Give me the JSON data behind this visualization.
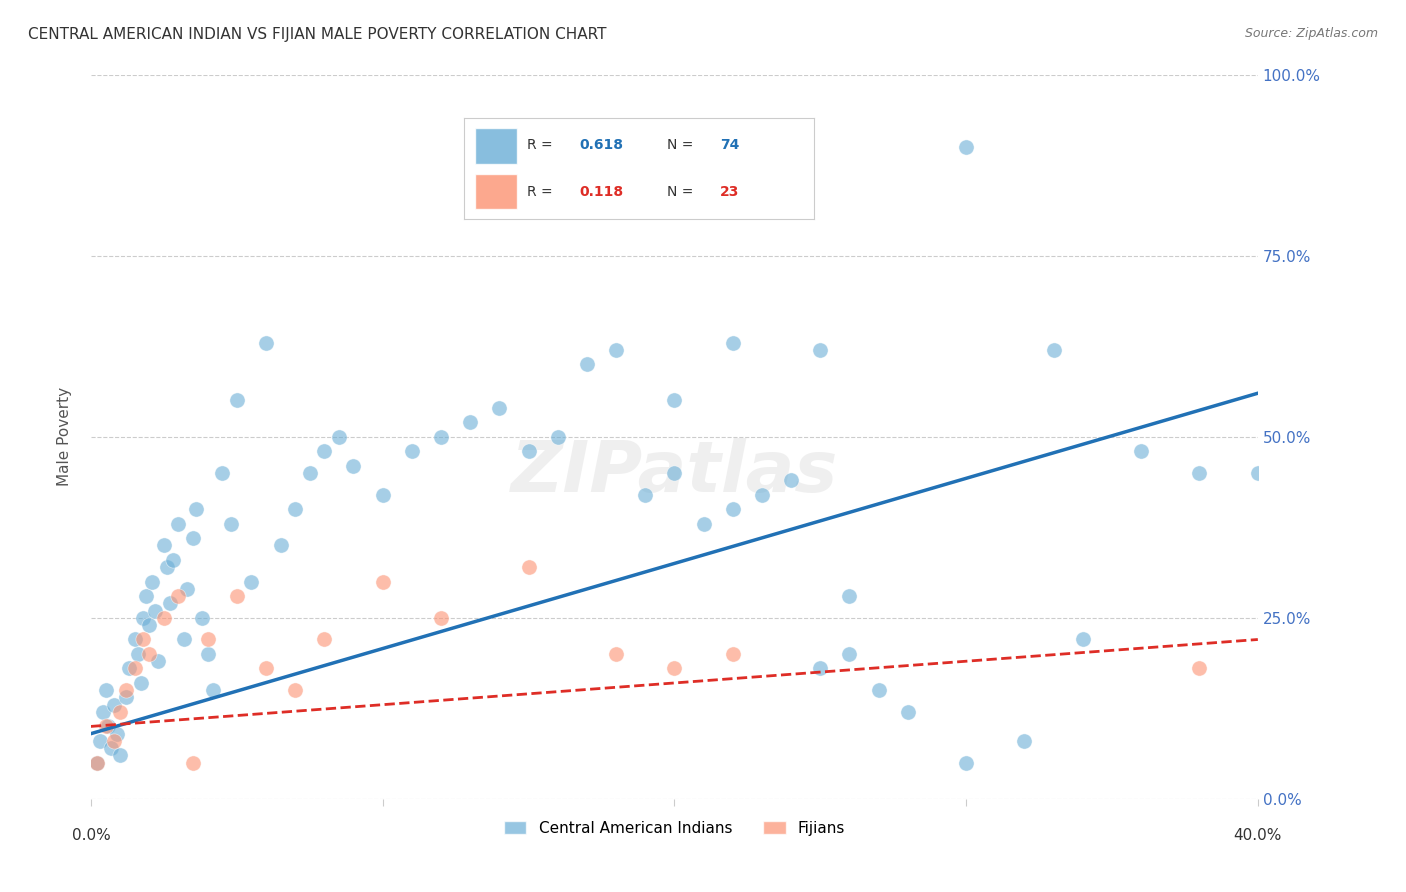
{
  "title": "CENTRAL AMERICAN INDIAN VS FIJIAN MALE POVERTY CORRELATION CHART",
  "source": "Source: ZipAtlas.com",
  "ylabel": "Male Poverty",
  "ytick_labels": [
    "0.0%",
    "25.0%",
    "50.0%",
    "75.0%",
    "100.0%"
  ],
  "ytick_values": [
    0.0,
    0.25,
    0.5,
    0.75,
    1.0
  ],
  "xlim": [
    0.0,
    0.4
  ],
  "ylim": [
    0.0,
    1.0
  ],
  "legend_r1": "0.618",
  "legend_n1": "74",
  "legend_r2": "0.118",
  "legend_n2": "23",
  "blue_color": "#6baed6",
  "blue_line_color": "#2171b5",
  "pink_color": "#fc9272",
  "pink_line_color": "#de2d26",
  "background_color": "#ffffff",
  "watermark": "ZIPatlas",
  "blue_x": [
    0.002,
    0.003,
    0.004,
    0.005,
    0.006,
    0.007,
    0.008,
    0.009,
    0.01,
    0.012,
    0.013,
    0.015,
    0.016,
    0.017,
    0.018,
    0.019,
    0.02,
    0.021,
    0.022,
    0.023,
    0.025,
    0.026,
    0.027,
    0.028,
    0.03,
    0.032,
    0.033,
    0.035,
    0.036,
    0.038,
    0.04,
    0.042,
    0.045,
    0.048,
    0.05,
    0.055,
    0.06,
    0.065,
    0.07,
    0.075,
    0.08,
    0.085,
    0.09,
    0.1,
    0.11,
    0.12,
    0.13,
    0.14,
    0.15,
    0.16,
    0.17,
    0.18,
    0.19,
    0.2,
    0.21,
    0.22,
    0.23,
    0.24,
    0.25,
    0.26,
    0.27,
    0.28,
    0.3,
    0.32,
    0.34,
    0.36,
    0.38,
    0.4,
    0.3,
    0.33,
    0.25,
    0.26,
    0.2,
    0.22
  ],
  "blue_y": [
    0.05,
    0.08,
    0.12,
    0.15,
    0.1,
    0.07,
    0.13,
    0.09,
    0.06,
    0.14,
    0.18,
    0.22,
    0.2,
    0.16,
    0.25,
    0.28,
    0.24,
    0.3,
    0.26,
    0.19,
    0.35,
    0.32,
    0.27,
    0.33,
    0.38,
    0.22,
    0.29,
    0.36,
    0.4,
    0.25,
    0.2,
    0.15,
    0.45,
    0.38,
    0.55,
    0.3,
    0.63,
    0.35,
    0.4,
    0.45,
    0.48,
    0.5,
    0.46,
    0.42,
    0.48,
    0.5,
    0.52,
    0.54,
    0.48,
    0.5,
    0.6,
    0.62,
    0.42,
    0.45,
    0.38,
    0.4,
    0.42,
    0.44,
    0.18,
    0.2,
    0.15,
    0.12,
    0.05,
    0.08,
    0.22,
    0.48,
    0.45,
    0.45,
    0.9,
    0.62,
    0.62,
    0.28,
    0.55,
    0.63
  ],
  "pink_x": [
    0.002,
    0.005,
    0.008,
    0.01,
    0.012,
    0.015,
    0.018,
    0.02,
    0.025,
    0.03,
    0.035,
    0.04,
    0.05,
    0.06,
    0.07,
    0.08,
    0.1,
    0.12,
    0.15,
    0.18,
    0.2,
    0.22,
    0.38
  ],
  "pink_y": [
    0.05,
    0.1,
    0.08,
    0.12,
    0.15,
    0.18,
    0.22,
    0.2,
    0.25,
    0.28,
    0.05,
    0.22,
    0.28,
    0.18,
    0.15,
    0.22,
    0.3,
    0.25,
    0.32,
    0.2,
    0.18,
    0.2,
    0.18
  ],
  "blue_line_x": [
    0.0,
    0.4
  ],
  "blue_line_y": [
    0.09,
    0.56
  ],
  "pink_line_x": [
    0.0,
    0.4
  ],
  "pink_line_y": [
    0.1,
    0.22
  ],
  "grid_color": "#cccccc",
  "title_color": "#333333",
  "axis_color": "#4472c4",
  "legend_label_blue": "Central American Indians",
  "legend_label_pink": "Fijians"
}
